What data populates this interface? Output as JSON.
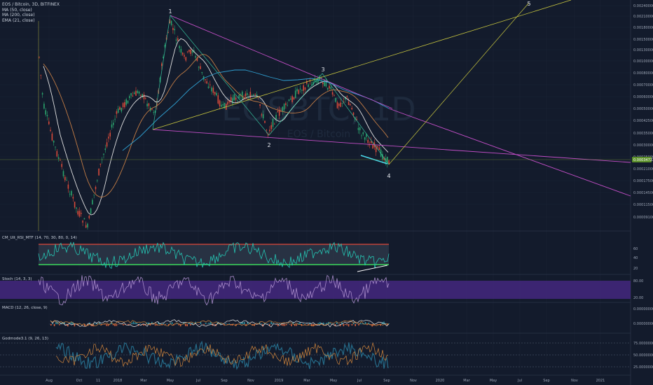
{
  "header": {
    "symbol": "EOS / Bitcoin, 3D, BITFINEX",
    "indicators": [
      "MA (50, close)",
      "MA (200, close)",
      "EMA (21, close)"
    ]
  },
  "watermark": {
    "big": "EOSBTC, 1D",
    "sub": "EOS / Bitcoin"
  },
  "colors": {
    "bg": "#131b2c",
    "up": "#d84a3a",
    "down": "#2aa26c",
    "ma50": "#c27c45",
    "ma200": "#2f9fd0",
    "ema21": "#e0e0e0",
    "wedge": "#c34ec7",
    "trend": "#c6c43e",
    "rsi": "#25c4b2",
    "rsi_upper": "#e0483a",
    "rsi_lower": "#38d85a",
    "stoch_band": "#4b2a8a",
    "stoch": "#a78ac9",
    "macd": "#e6e6e6",
    "macd_signal": "#d2863c"
  },
  "panels": {
    "rsi": {
      "label": "CM_Ult_RSI_MTF (14, 70, 30, 80, 0, 14)",
      "ticks": [
        "60",
        "40",
        "20"
      ]
    },
    "stoch": {
      "label": "Stoch (14, 3, 3)",
      "ticks": [
        "80.00",
        "20.00"
      ]
    },
    "macd": {
      "label": "MACD (12, 26, close, 9)",
      "ticks": [
        "0.00000000",
        "0.00000000"
      ]
    },
    "godmode": {
      "label": "Godmode3.1 (9, 26, 13)",
      "ticks": [
        "75.00000000",
        "50.00000000",
        "25.00000000"
      ]
    }
  },
  "chart_data": {
    "type": "candlestick",
    "title": "EOS / Bitcoin, 3D, BITFINEX",
    "price_axis": [
      "0.00240000",
      "0.00210000",
      "0.00180000",
      "0.00150000",
      "0.00130000",
      "0.00100000",
      "0.00080000",
      "0.00070000",
      "0.00060000",
      "0.00050000",
      "0.00042500",
      "0.00035000",
      "0.00030000",
      "0.00025000",
      "0.00021000",
      "0.00017500",
      "0.00014500",
      "0.00011500",
      "0.00009100"
    ],
    "x_ticks": [
      "Aug",
      "Oct",
      "11",
      "2018",
      "Mar",
      "May",
      "Jul",
      "Sep",
      "Nov",
      "2019",
      "Mar",
      "May",
      "Jul",
      "Sep",
      "Nov",
      "2020",
      "Mar",
      "May",
      "Jul",
      "Sep",
      "Nov",
      "2021"
    ],
    "last_price": "0.00034722",
    "wave_labels": [
      "1",
      "2",
      "3",
      "4",
      "5"
    ],
    "series": [
      {
        "name": "MA (50, close)"
      },
      {
        "name": "MA (200, close)"
      },
      {
        "name": "EMA (21, close)"
      }
    ]
  }
}
